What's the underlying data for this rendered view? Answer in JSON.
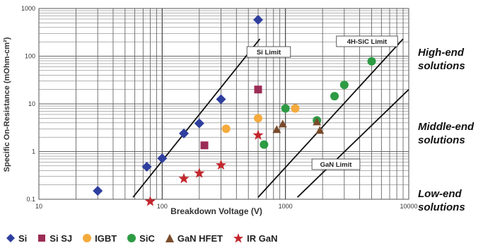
{
  "chart_data": {
    "type": "scatter",
    "xscale": "log",
    "yscale": "log",
    "xlim": [
      10,
      10000
    ],
    "ylim": [
      0.1,
      1000
    ],
    "xlabel": "Breakdown Voltage (V)",
    "ylabel": "Specific On-Resistance (mOhm-cm²)",
    "x_ticks": [
      "10",
      "100",
      "1000",
      "10000"
    ],
    "y_ticks": [
      "0.1",
      "1",
      "10",
      "100",
      "1000"
    ],
    "grid": true,
    "legend_position": "bottom",
    "series": [
      {
        "name": "Si",
        "marker": "diamond",
        "color": "#2e3f9e",
        "points": [
          [
            30,
            0.15
          ],
          [
            75,
            0.48
          ],
          [
            100,
            0.72
          ],
          [
            150,
            2.4
          ],
          [
            200,
            3.9
          ],
          [
            300,
            12.5
          ],
          [
            600,
            580
          ]
        ]
      },
      {
        "name": "Si SJ",
        "marker": "square",
        "color": "#9b2c55",
        "points": [
          [
            220,
            1.35
          ],
          [
            600,
            20
          ]
        ]
      },
      {
        "name": "IGBT",
        "marker": "circle",
        "color": "#f4aa3c",
        "points": [
          [
            330,
            3.0
          ],
          [
            600,
            5.0
          ],
          [
            1200,
            8.0
          ]
        ]
      },
      {
        "name": "SiC",
        "marker": "circle",
        "color": "#2d9b44",
        "points": [
          [
            670,
            1.4
          ],
          [
            1000,
            8.0
          ],
          [
            1800,
            4.5
          ],
          [
            2500,
            14.5
          ],
          [
            3000,
            25
          ],
          [
            5000,
            78
          ]
        ]
      },
      {
        "name": "GaN HFET",
        "marker": "triangle",
        "color": "#7a4b2c",
        "points": [
          [
            850,
            2.9
          ],
          [
            950,
            3.8
          ],
          [
            1800,
            4.2
          ],
          [
            1900,
            2.8
          ]
        ]
      },
      {
        "name": "IR GaN",
        "marker": "star",
        "color": "#c3262d",
        "points": [
          [
            80,
            0.09
          ],
          [
            150,
            0.27
          ],
          [
            200,
            0.35
          ],
          [
            300,
            0.52
          ],
          [
            600,
            2.2
          ]
        ]
      }
    ],
    "limit_lines": [
      {
        "label": "Si Limit",
        "from": [
          58,
          0.11
        ],
        "to": [
          620,
          230
        ]
      },
      {
        "label": "4H-SiC Limit",
        "from": [
          600,
          0.11
        ],
        "to": [
          9000,
          230
        ]
      },
      {
        "label": "GaN Limit",
        "from": [
          1250,
          0.11
        ],
        "to": [
          10000,
          20
        ]
      }
    ],
    "zone_labels": [
      {
        "lines": [
          "High-end",
          "solutions"
        ]
      },
      {
        "lines": [
          "Middle-end",
          "solutions"
        ]
      },
      {
        "lines": [
          "Low-end",
          "solutions"
        ]
      }
    ]
  }
}
